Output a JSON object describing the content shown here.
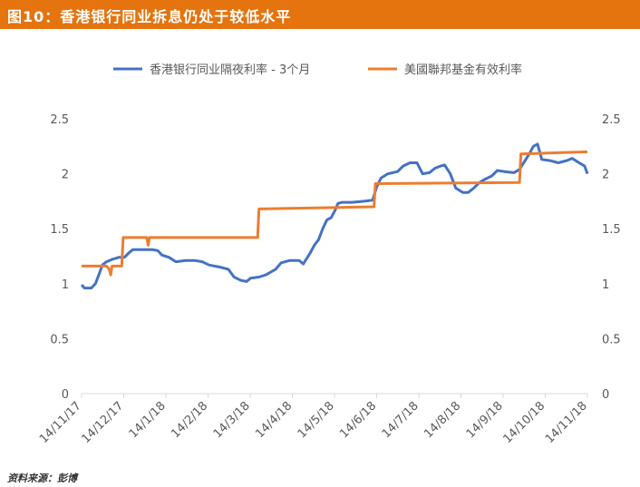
{
  "header": {
    "title": "图10：香港银行同业拆息仍处于较低水平"
  },
  "source": "资料来源：彭博",
  "colors": {
    "title_bar": "#E5740F",
    "hibor": "#4472C4",
    "fed": "#ED7D31",
    "axis_text": "#595959"
  },
  "chart_data": {
    "type": "line",
    "title": "",
    "xlabel": "",
    "ylabel": "",
    "ylim": [
      0,
      2.5
    ],
    "yticks": [
      "0",
      "0.5",
      "1",
      "1.5",
      "2",
      "2.5"
    ],
    "ytick_values": [
      0,
      0.5,
      1,
      1.5,
      2,
      2.5
    ],
    "xticks": [
      "14/11/17",
      "14/12/17",
      "14/1/18",
      "14/2/18",
      "14/3/18",
      "14/4/18",
      "14/5/18",
      "14/6/18",
      "14/7/18",
      "14/8/18",
      "14/9/18",
      "14/10/18",
      "14/11/18"
    ],
    "xrange": [
      "2017-11-14",
      "2018-11-14"
    ],
    "grid": false,
    "legend_position": "top",
    "series": [
      {
        "name": "香港银行同业隔夜利率 - 3个月",
        "color": "#4472C4",
        "points": [
          [
            "2017-11-14",
            0.99
          ],
          [
            "2017-11-16",
            0.96
          ],
          [
            "2017-11-21",
            0.96
          ],
          [
            "2017-11-24",
            1.0
          ],
          [
            "2017-11-27",
            1.1
          ],
          [
            "2017-11-29",
            1.17
          ],
          [
            "2017-12-02",
            1.2
          ],
          [
            "2017-12-06",
            1.22
          ],
          [
            "2017-12-11",
            1.24
          ],
          [
            "2017-12-15",
            1.24
          ],
          [
            "2017-12-18",
            1.28
          ],
          [
            "2017-12-21",
            1.31
          ],
          [
            "2017-12-28",
            1.31
          ],
          [
            "2018-01-04",
            1.31
          ],
          [
            "2018-01-08",
            1.3
          ],
          [
            "2018-01-11",
            1.26
          ],
          [
            "2018-01-16",
            1.24
          ],
          [
            "2018-01-21",
            1.2
          ],
          [
            "2018-01-28",
            1.21
          ],
          [
            "2018-02-04",
            1.21
          ],
          [
            "2018-02-09",
            1.2
          ],
          [
            "2018-02-14",
            1.17
          ],
          [
            "2018-02-22",
            1.15
          ],
          [
            "2018-02-28",
            1.13
          ],
          [
            "2018-03-04",
            1.06
          ],
          [
            "2018-03-09",
            1.03
          ],
          [
            "2018-03-13",
            1.02
          ],
          [
            "2018-03-16",
            1.05
          ],
          [
            "2018-03-22",
            1.06
          ],
          [
            "2018-03-27",
            1.08
          ],
          [
            "2018-04-03",
            1.13
          ],
          [
            "2018-04-07",
            1.19
          ],
          [
            "2018-04-13",
            1.21
          ],
          [
            "2018-04-20",
            1.21
          ],
          [
            "2018-04-23",
            1.18
          ],
          [
            "2018-04-25",
            1.22
          ],
          [
            "2018-04-28",
            1.28
          ],
          [
            "2018-05-01",
            1.35
          ],
          [
            "2018-05-04",
            1.4
          ],
          [
            "2018-05-07",
            1.5
          ],
          [
            "2018-05-10",
            1.58
          ],
          [
            "2018-05-13",
            1.6
          ],
          [
            "2018-05-16",
            1.67
          ],
          [
            "2018-05-18",
            1.73
          ],
          [
            "2018-05-21",
            1.74
          ],
          [
            "2018-05-28",
            1.74
          ],
          [
            "2018-06-06",
            1.75
          ],
          [
            "2018-06-12",
            1.76
          ],
          [
            "2018-06-15",
            1.88
          ],
          [
            "2018-06-18",
            1.96
          ],
          [
            "2018-06-23",
            2.0
          ],
          [
            "2018-06-30",
            2.02
          ],
          [
            "2018-07-04",
            2.07
          ],
          [
            "2018-07-09",
            2.1
          ],
          [
            "2018-07-14",
            2.1
          ],
          [
            "2018-07-18",
            2.0
          ],
          [
            "2018-07-23",
            2.01
          ],
          [
            "2018-07-27",
            2.05
          ],
          [
            "2018-07-31",
            2.07
          ],
          [
            "2018-08-03",
            2.08
          ],
          [
            "2018-08-07",
            2.0
          ],
          [
            "2018-08-11",
            1.87
          ],
          [
            "2018-08-16",
            1.83
          ],
          [
            "2018-08-20",
            1.83
          ],
          [
            "2018-08-24",
            1.87
          ],
          [
            "2018-08-28",
            1.92
          ],
          [
            "2018-09-01",
            1.95
          ],
          [
            "2018-09-06",
            1.98
          ],
          [
            "2018-09-10",
            2.03
          ],
          [
            "2018-09-15",
            2.02
          ],
          [
            "2018-09-22",
            2.01
          ],
          [
            "2018-09-26",
            2.04
          ],
          [
            "2018-09-30",
            2.12
          ],
          [
            "2018-10-03",
            2.18
          ],
          [
            "2018-10-06",
            2.25
          ],
          [
            "2018-10-09",
            2.27
          ],
          [
            "2018-10-12",
            2.13
          ],
          [
            "2018-10-18",
            2.12
          ],
          [
            "2018-10-24",
            2.1
          ],
          [
            "2018-10-30",
            2.12
          ],
          [
            "2018-11-03",
            2.14
          ],
          [
            "2018-11-08",
            2.1
          ],
          [
            "2018-11-12",
            2.07
          ],
          [
            "2018-11-14",
            2.0
          ]
        ]
      },
      {
        "name": "美國聯邦基金有效利率",
        "color": "#ED7D31",
        "points": [
          [
            "2017-11-14",
            1.16
          ],
          [
            "2017-12-02",
            1.16
          ],
          [
            "2017-12-04",
            1.13
          ],
          [
            "2017-12-05",
            1.08
          ],
          [
            "2017-12-06",
            1.16
          ],
          [
            "2017-12-13",
            1.16
          ],
          [
            "2017-12-14",
            1.42
          ],
          [
            "2017-12-31",
            1.42
          ],
          [
            "2018-01-01",
            1.35
          ],
          [
            "2018-01-02",
            1.42
          ],
          [
            "2018-03-21",
            1.42
          ],
          [
            "2018-03-22",
            1.68
          ],
          [
            "2018-06-13",
            1.7
          ],
          [
            "2018-06-14",
            1.91
          ],
          [
            "2018-09-26",
            1.92
          ],
          [
            "2018-09-27",
            2.18
          ],
          [
            "2018-11-14",
            2.2
          ]
        ]
      }
    ]
  }
}
